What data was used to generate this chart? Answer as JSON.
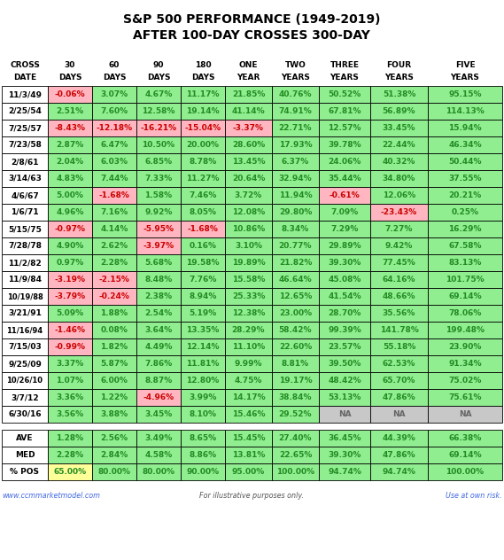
{
  "title1": "S&P 500 PERFORMANCE (1949-2019)",
  "title2": "AFTER 100-DAY CROSSES 300-DAY",
  "rows": [
    [
      "11/3/49",
      "-0.06%",
      "3.07%",
      "4.67%",
      "11.17%",
      "21.85%",
      "40.76%",
      "50.52%",
      "51.38%",
      "95.15%"
    ],
    [
      "2/25/54",
      "2.51%",
      "7.60%",
      "12.58%",
      "19.14%",
      "41.14%",
      "74.91%",
      "67.81%",
      "56.89%",
      "114.13%"
    ],
    [
      "7/25/57",
      "-8.43%",
      "-12.18%",
      "-16.21%",
      "-15.04%",
      "-3.37%",
      "22.71%",
      "12.57%",
      "33.45%",
      "15.94%"
    ],
    [
      "7/23/58",
      "2.87%",
      "6.47%",
      "10.50%",
      "20.00%",
      "28.60%",
      "17.93%",
      "39.78%",
      "22.44%",
      "46.34%"
    ],
    [
      "2/8/61",
      "2.04%",
      "6.03%",
      "6.85%",
      "8.78%",
      "13.45%",
      "6.37%",
      "24.06%",
      "40.32%",
      "50.44%"
    ],
    [
      "3/14/63",
      "4.83%",
      "7.44%",
      "7.33%",
      "11.27%",
      "20.64%",
      "32.94%",
      "35.44%",
      "34.80%",
      "37.55%"
    ],
    [
      "4/6/67",
      "5.00%",
      "-1.68%",
      "1.58%",
      "7.46%",
      "3.72%",
      "11.94%",
      "-0.61%",
      "12.06%",
      "20.21%"
    ],
    [
      "1/6/71",
      "4.96%",
      "7.16%",
      "9.92%",
      "8.05%",
      "12.08%",
      "29.80%",
      "7.09%",
      "-23.43%",
      "0.25%"
    ],
    [
      "5/15/75",
      "-0.97%",
      "4.14%",
      "-5.95%",
      "-1.68%",
      "10.86%",
      "8.34%",
      "7.29%",
      "7.27%",
      "16.29%"
    ],
    [
      "7/28/78",
      "4.90%",
      "2.62%",
      "-3.97%",
      "0.16%",
      "3.10%",
      "20.77%",
      "29.89%",
      "9.42%",
      "67.58%"
    ],
    [
      "11/2/82",
      "0.97%",
      "2.28%",
      "5.68%",
      "19.58%",
      "19.89%",
      "21.82%",
      "39.30%",
      "77.45%",
      "83.13%"
    ],
    [
      "11/9/84",
      "-3.19%",
      "-2.15%",
      "8.48%",
      "7.76%",
      "15.58%",
      "46.64%",
      "45.08%",
      "64.16%",
      "101.75%"
    ],
    [
      "10/19/88",
      "-3.79%",
      "-0.24%",
      "2.38%",
      "8.94%",
      "25.33%",
      "12.65%",
      "41.54%",
      "48.66%",
      "69.14%"
    ],
    [
      "3/21/91",
      "5.09%",
      "1.88%",
      "2.54%",
      "5.19%",
      "12.38%",
      "23.00%",
      "28.70%",
      "35.56%",
      "78.06%"
    ],
    [
      "11/16/94",
      "-1.46%",
      "0.08%",
      "3.64%",
      "13.35%",
      "28.29%",
      "58.42%",
      "99.39%",
      "141.78%",
      "199.48%"
    ],
    [
      "7/15/03",
      "-0.99%",
      "1.82%",
      "4.49%",
      "12.14%",
      "11.10%",
      "22.60%",
      "23.57%",
      "55.18%",
      "23.90%"
    ],
    [
      "9/25/09",
      "3.37%",
      "5.87%",
      "7.86%",
      "11.81%",
      "9.99%",
      "8.81%",
      "39.50%",
      "62.53%",
      "91.34%"
    ],
    [
      "10/26/10",
      "1.07%",
      "6.00%",
      "8.87%",
      "12.80%",
      "4.75%",
      "19.17%",
      "48.42%",
      "65.70%",
      "75.02%"
    ],
    [
      "3/7/12",
      "3.36%",
      "1.22%",
      "-4.96%",
      "3.99%",
      "14.17%",
      "38.84%",
      "53.13%",
      "47.86%",
      "75.61%"
    ],
    [
      "6/30/16",
      "3.56%",
      "3.88%",
      "3.45%",
      "8.10%",
      "15.46%",
      "29.52%",
      "NA",
      "NA",
      "NA"
    ]
  ],
  "summary_rows": [
    [
      "AVE",
      "1.28%",
      "2.56%",
      "3.49%",
      "8.65%",
      "15.45%",
      "27.40%",
      "36.45%",
      "44.39%",
      "66.38%"
    ],
    [
      "MED",
      "2.28%",
      "2.84%",
      "4.58%",
      "8.86%",
      "13.81%",
      "22.65%",
      "39.30%",
      "47.86%",
      "69.14%"
    ],
    [
      "% POS",
      "65.00%",
      "80.00%",
      "80.00%",
      "90.00%",
      "95.00%",
      "100.00%",
      "94.74%",
      "94.74%",
      "100.00%"
    ]
  ],
  "headers_line1": [
    "CROSS",
    "30",
    "60",
    "90",
    "180",
    "ONE",
    "TWO",
    "THREE",
    "FOUR",
    "FIVE"
  ],
  "headers_line2": [
    "DATE",
    "DAYS",
    "DAYS",
    "DAYS",
    "DAYS",
    "YEAR",
    "YEARS",
    "YEARS",
    "YEARS",
    "YEARS"
  ],
  "footer": [
    "www.ccmmarketmodel.com",
    "For illustrative purposes only.",
    "Use at own risk."
  ],
  "green_bg": "#90EE90",
  "yellow_bg": "#FFFF99",
  "pink_bg": "#FFB6C1",
  "na_bg": "#C8C8C8",
  "red_text": "#CC0000",
  "green_text": "#228B22",
  "na_text": "#666666",
  "blue_text": "#4169E1",
  "gray_text": "#555555"
}
